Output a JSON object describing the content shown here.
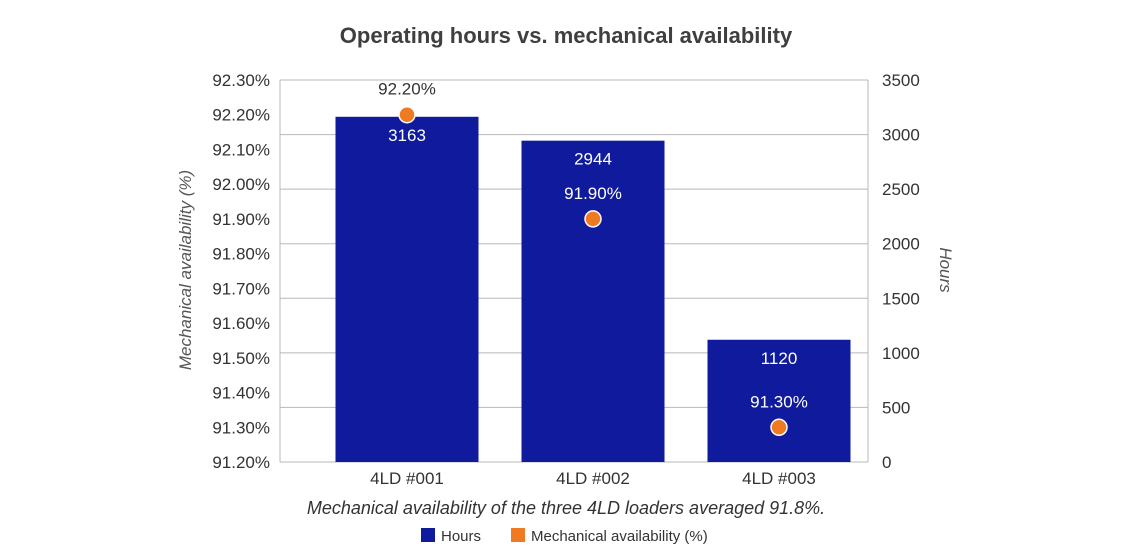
{
  "colors": {
    "hours": "#0f1a9c",
    "availability": "#f07a22",
    "grid": "#b8b8b8"
  },
  "chart_data": {
    "type": "bar",
    "title": "Operating hours vs. mechanical availability",
    "caption": "Mechanical availability of the three 4LD loaders averaged 91.8%.",
    "categories": [
      "4LD #001",
      "4LD #002",
      "4LD #003"
    ],
    "series": [
      {
        "name": "Hours",
        "type": "bar",
        "axis": "right",
        "values": [
          3163,
          2944,
          1120
        ],
        "labels": [
          "3163",
          "2944",
          "1120"
        ]
      },
      {
        "name": "Mechanical availability (%)",
        "type": "scatter",
        "axis": "left",
        "values": [
          92.2,
          91.9,
          91.3
        ],
        "labels": [
          "92.20%",
          "91.90%",
          "91.30%"
        ]
      }
    ],
    "y_left": {
      "label": "Mechanical availability (%)",
      "range": [
        91.2,
        92.3
      ],
      "ticks": [
        "92.30%",
        "92.20%",
        "92.10%",
        "92.00%",
        "91.90%",
        "91.80%",
        "91.70%",
        "91.60%",
        "91.50%",
        "91.40%",
        "91.30%",
        "91.20%"
      ]
    },
    "y_right": {
      "label": "Hours",
      "range": [
        0,
        3500
      ],
      "ticks": [
        "3500",
        "3000",
        "2500",
        "2000",
        "1500",
        "1000",
        "500",
        "0"
      ]
    },
    "grid": true,
    "legend": {
      "position": "bottom",
      "entries": [
        "Hours",
        "Mechanical availability (%)"
      ]
    }
  }
}
